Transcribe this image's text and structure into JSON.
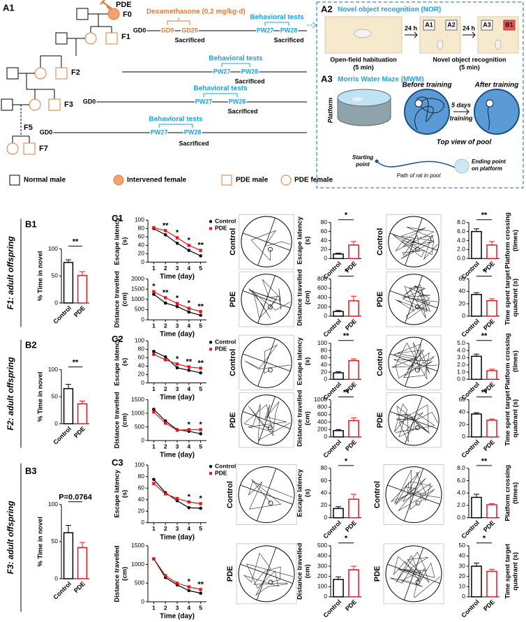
{
  "a1": {
    "label": "A1",
    "pde": "PDE",
    "f0": "F0",
    "f1": "F1",
    "f2": "F2",
    "f3": "F3",
    "f5": "F5",
    "f7": "F7",
    "dex": "Dexamethasone (0.2 mg/kg·d)",
    "t1": {
      "tests": "Behavioral tests",
      "gd0": "GD0",
      "gd9": "GD9",
      "gd20": "GD20",
      "sac_gd": "Sacrificed",
      "pw27": "PW27",
      "pw28": "PW28",
      "sac": "Sacrificed"
    },
    "t2": {
      "tests": "Behavioral tests",
      "pw27": "PW27",
      "pw28": "PW28",
      "sac": "Sacrificed"
    },
    "t3": {
      "tests": "Behavioral tests",
      "gd0": "GD0",
      "pw27": "PW27",
      "pw28": "PW28",
      "sac": "Sacrificed"
    },
    "t7": {
      "tests": "Behavioral tests",
      "gd0": "GD0",
      "pw27": "PW27",
      "pw28": "PW28",
      "sac": "Sacrificed"
    }
  },
  "legend": [
    "Normal male",
    "Intervened female",
    "PDE male",
    "PDE female"
  ],
  "a2": {
    "label": "A2",
    "title": "Novel object recognition (NOR)",
    "step1": [
      "Open-field habituation",
      "(5 min)"
    ],
    "arrow": [
      "24 h",
      "24 h"
    ],
    "objects": [
      "A1",
      "A2",
      "A3",
      "B1"
    ],
    "step2": [
      "Novel object recognition",
      "(5 min)"
    ]
  },
  "a3": {
    "label": "A3",
    "title": "Morris Water Maze (MWM)",
    "platform": "Platform",
    "before": "Before training",
    "after": "After training",
    "arrow": [
      "5 days",
      "training"
    ],
    "top_view": "Top view of pool",
    "start": [
      "Starting",
      "point"
    ],
    "path": "Path of rat in pool",
    "end": [
      "Ending point",
      "on platform"
    ]
  },
  "rows": [
    {
      "label": "F1: adult offspring",
      "track_labels": [
        "Control",
        "PDE",
        "Control",
        "PDE"
      ]
    },
    {
      "label": "F2: adult offspring",
      "track_labels": [
        "Control",
        "PDE",
        "Control",
        "PDE"
      ]
    },
    {
      "label": "F3: adult offspring",
      "track_labels": [
        "Control",
        "PDE",
        "Control",
        "PDE"
      ]
    }
  ],
  "chart_data": [
    {
      "type": "bar",
      "panel_label": "B1",
      "ylabel": [
        "% Time in novel"
      ],
      "categories": [
        "Control",
        "PDE"
      ],
      "values": [
        75,
        51
      ],
      "errors": [
        5,
        7
      ],
      "colors": [
        "#000000",
        "#e8141c"
      ],
      "ylim": [
        0,
        100
      ],
      "yticks": [
        0,
        50,
        100
      ],
      "annotation": "**"
    },
    {
      "type": "line",
      "panel_label": "C1",
      "ylabel": [
        "Escape latency",
        "(s)"
      ],
      "xlabel": "Time (day)",
      "x": [
        1,
        2,
        3,
        4,
        5
      ],
      "xlim": [
        0.5,
        5.5
      ],
      "xticks": [
        1,
        2,
        3,
        4,
        5
      ],
      "ylim": [
        0,
        100
      ],
      "yticks": [
        0,
        20,
        40,
        60,
        80,
        100
      ],
      "legend": true,
      "series": [
        {
          "name": "Control",
          "color": "#000000",
          "marker": "circle",
          "values": [
            80,
            65,
            45,
            28,
            15
          ]
        },
        {
          "name": "PDE",
          "color": "#e8141c",
          "marker": "square",
          "values": [
            82,
            75,
            58,
            40,
            28
          ]
        }
      ],
      "annotations": [
        null,
        "**",
        "*",
        "*",
        "**"
      ]
    },
    {
      "type": "line",
      "ylabel": [
        "Distance travelled",
        "(cm)"
      ],
      "xlabel": "Time (day)",
      "x": [
        1,
        2,
        3,
        4,
        5
      ],
      "xlim": [
        0.5,
        5.5
      ],
      "xticks": [
        1,
        2,
        3,
        4,
        5
      ],
      "ylim": [
        0,
        2000
      ],
      "yticks": [
        0,
        500,
        1000,
        1500,
        2000
      ],
      "legend": false,
      "series": [
        {
          "color": "#000000",
          "marker": "circle",
          "values": [
            1250,
            820,
            650,
            380,
            220
          ]
        },
        {
          "color": "#e8141c",
          "marker": "square",
          "values": [
            1380,
            1080,
            800,
            560,
            400
          ]
        }
      ],
      "annotations": [
        "*",
        "**",
        "*",
        "*",
        "**"
      ]
    },
    {
      "type": "bar",
      "ylabel": [
        "Escape latency",
        "(s)"
      ],
      "categories": [
        "Control",
        "PDE"
      ],
      "values": [
        10,
        30
      ],
      "errors": [
        2,
        8
      ],
      "colors": [
        "#000000",
        "#e8141c"
      ],
      "ylim": [
        0,
        80
      ],
      "yticks": [
        0,
        20,
        40,
        60,
        80
      ],
      "annotation": "*"
    },
    {
      "type": "bar",
      "ylabel": [
        "Distance travelled",
        "(cm)"
      ],
      "categories": [
        "Control",
        "PDE"
      ],
      "values": [
        100,
        330
      ],
      "errors": [
        25,
        100
      ],
      "colors": [
        "#000000",
        "#e8141c"
      ],
      "ylim": [
        0,
        800
      ],
      "yticks": [
        0,
        200,
        400,
        600,
        800
      ],
      "annotation": "*"
    },
    {
      "type": "bar",
      "ylabel": [
        "Platform crossing",
        "(times)"
      ],
      "categories": [
        "Control",
        "PDE"
      ],
      "values": [
        6,
        3
      ],
      "errors": [
        0.6,
        0.8
      ],
      "colors": [
        "#000000",
        "#e8141c"
      ],
      "ylim": [
        0,
        8
      ],
      "yticks": [
        {
          "value": 0,
          "label": "0.0"
        },
        {
          "value": 2,
          "label": "2.0"
        },
        {
          "value": 4,
          "label": "4.0"
        },
        {
          "value": 6,
          "label": "6.0"
        },
        {
          "value": 8,
          "label": "8.0"
        }
      ],
      "annotation": "**"
    },
    {
      "type": "bar",
      "ylabel": [
        "Time spent target",
        "quadrant (s)"
      ],
      "categories": [
        "Control",
        "PDE"
      ],
      "values": [
        35,
        25
      ],
      "errors": [
        3,
        3
      ],
      "colors": [
        "#000000",
        "#e8141c"
      ],
      "ylim": [
        0,
        60
      ],
      "yticks": [
        0,
        20,
        40,
        60
      ],
      "annotation": "*"
    },
    {
      "type": "bar",
      "panel_label": "B2",
      "ylabel": [
        "% Time in novel"
      ],
      "categories": [
        "Control",
        "PDE"
      ],
      "values": [
        65,
        37
      ],
      "errors": [
        8,
        5
      ],
      "colors": [
        "#000000",
        "#e8141c"
      ],
      "ylim": [
        0,
        100
      ],
      "yticks": [
        0,
        50,
        100
      ],
      "annotation": "**"
    },
    {
      "type": "line",
      "panel_label": "C2",
      "ylabel": [
        "Escape latency",
        "(s)"
      ],
      "xlabel": "Time (day)",
      "x": [
        1,
        2,
        3,
        4,
        5
      ],
      "xlim": [
        0.5,
        5.5
      ],
      "xticks": [
        1,
        2,
        3,
        4,
        5
      ],
      "ylim": [
        0,
        100
      ],
      "yticks": [
        0,
        20,
        40,
        60,
        80,
        100
      ],
      "legend": true,
      "series": [
        {
          "name": "Control",
          "color": "#000000",
          "marker": "circle",
          "values": [
            75,
            62,
            36,
            30,
            24
          ]
        },
        {
          "name": "PDE",
          "color": "#e8141c",
          "marker": "square",
          "values": [
            68,
            55,
            45,
            38,
            35
          ]
        }
      ],
      "annotations": [
        null,
        null,
        "*",
        "**",
        "**"
      ]
    },
    {
      "type": "line",
      "ylabel": [
        "Distance travelled",
        "(cm)"
      ],
      "xlabel": "Time (day)",
      "x": [
        1,
        2,
        3,
        4,
        5
      ],
      "xlim": [
        0.5,
        5.5
      ],
      "xticks": [
        1,
        2,
        3,
        4,
        5
      ],
      "ylim": [
        0,
        1500
      ],
      "yticks": [
        0,
        500,
        1000,
        1500
      ],
      "legend": false,
      "series": [
        {
          "color": "#000000",
          "marker": "circle",
          "values": [
            1150,
            720,
            400,
            340,
            250
          ]
        },
        {
          "color": "#e8141c",
          "marker": "square",
          "values": [
            1050,
            640,
            380,
            400,
            400
          ]
        }
      ],
      "annotations": [
        null,
        null,
        null,
        "*",
        "*"
      ]
    },
    {
      "type": "bar",
      "ylabel": [
        "Escape latency",
        "(s)"
      ],
      "categories": [
        "Control",
        "PDE"
      ],
      "values": [
        18,
        52
      ],
      "errors": [
        3,
        5
      ],
      "colors": [
        "#000000",
        "#e8141c"
      ],
      "ylim": [
        0,
        100
      ],
      "yticks": [
        0,
        20,
        40,
        60,
        80,
        100
      ],
      "annotation": "**"
    },
    {
      "type": "bar",
      "ylabel": [
        "Distance travelled",
        "(cm)"
      ],
      "categories": [
        "Control",
        "PDE"
      ],
      "values": [
        170,
        440
      ],
      "errors": [
        30,
        70
      ],
      "colors": [
        "#000000",
        "#e8141c"
      ],
      "ylim": [
        0,
        1000
      ],
      "yticks": [
        0,
        200,
        400,
        600,
        800,
        1000
      ],
      "annotation": "**"
    },
    {
      "type": "bar",
      "ylabel": [
        "Platform crossing",
        "(times)"
      ],
      "categories": [
        "Control",
        "PDE"
      ],
      "values": [
        3.2,
        1.2
      ],
      "errors": [
        0.3,
        0.2
      ],
      "colors": [
        "#000000",
        "#e8141c"
      ],
      "ylim": [
        0,
        5
      ],
      "yticks": [
        {
          "value": 0,
          "label": "0.0"
        },
        {
          "value": 1,
          "label": "1.0"
        },
        {
          "value": 2,
          "label": "2.0"
        },
        {
          "value": 3,
          "label": "3.0"
        },
        {
          "value": 4,
          "label": "4.0"
        },
        {
          "value": 5,
          "label": "5.0"
        }
      ],
      "annotation": "**"
    },
    {
      "type": "bar",
      "ylabel": [
        "Time spent target",
        "quadrant (s)"
      ],
      "categories": [
        "Control",
        "PDE"
      ],
      "values": [
        37,
        27
      ],
      "errors": [
        2,
        2
      ],
      "colors": [
        "#000000",
        "#e8141c"
      ],
      "ylim": [
        0,
        60
      ],
      "yticks": [
        0,
        20,
        40,
        60
      ],
      "annotation": "**"
    },
    {
      "type": "bar",
      "panel_label": "B3",
      "ylabel": [
        "% Time in novel"
      ],
      "categories": [
        "Control",
        "PDE"
      ],
      "values": [
        62,
        42
      ],
      "errors": [
        10,
        7
      ],
      "colors": [
        "#000000",
        "#e8141c"
      ],
      "ylim": [
        0,
        100
      ],
      "yticks": [
        0,
        50,
        100
      ],
      "annotation": "P=0.0764"
    },
    {
      "type": "line",
      "panel_label": "C3",
      "ylabel": [
        "Escape latency",
        "(s)"
      ],
      "xlabel": "Time (day)",
      "x": [
        1,
        2,
        3,
        4,
        5
      ],
      "xlim": [
        0.5,
        5.5
      ],
      "xticks": [
        1,
        2,
        3,
        4,
        5
      ],
      "ylim": [
        0,
        100
      ],
      "yticks": [
        0,
        20,
        40,
        60,
        80,
        100
      ],
      "legend": true,
      "series": [
        {
          "name": "Control",
          "color": "#000000",
          "marker": "circle",
          "values": [
            75,
            52,
            38,
            26,
            25
          ]
        },
        {
          "name": "PDE",
          "color": "#e8141c",
          "marker": "square",
          "values": [
            68,
            50,
            42,
            36,
            33
          ]
        }
      ],
      "annotations": [
        null,
        null,
        null,
        "*",
        "*"
      ]
    },
    {
      "type": "line",
      "ylabel": [
        "Distance travelled",
        "(cm)"
      ],
      "xlabel": "Time (day)",
      "x": [
        1,
        2,
        3,
        4,
        5
      ],
      "xlim": [
        0.5,
        5.5
      ],
      "xticks": [
        1,
        2,
        3,
        4,
        5
      ],
      "ylim": [
        0,
        1500
      ],
      "yticks": [
        0,
        500,
        1000,
        1500
      ],
      "legend": false,
      "series": [
        {
          "color": "#000000",
          "marker": "circle",
          "values": [
            1150,
            650,
            450,
            300,
            230
          ]
        },
        {
          "color": "#e8141c",
          "marker": "square",
          "values": [
            1150,
            700,
            500,
            400,
            330
          ]
        }
      ],
      "annotations": [
        null,
        null,
        null,
        "*",
        "**"
      ]
    },
    {
      "type": "bar",
      "ylabel": [
        "Escape latency",
        "(s)"
      ],
      "categories": [
        "Control",
        "PDE"
      ],
      "values": [
        15,
        30
      ],
      "errors": [
        3,
        8
      ],
      "colors": [
        "#000000",
        "#e8141c"
      ],
      "ylim": [
        0,
        80
      ],
      "yticks": [
        0,
        20,
        40,
        60,
        80
      ],
      "annotation": "*"
    },
    {
      "type": "bar",
      "ylabel": [
        "Distance travelled",
        "(cm)"
      ],
      "categories": [
        "Control",
        "PDE"
      ],
      "values": [
        170,
        265
      ],
      "errors": [
        25,
        35
      ],
      "colors": [
        "#000000",
        "#e8141c"
      ],
      "ylim": [
        0,
        500
      ],
      "yticks": [
        0,
        100,
        200,
        300,
        400,
        500
      ],
      "annotation": "*"
    },
    {
      "type": "bar",
      "ylabel": [
        "Platform crossing",
        "(times)"
      ],
      "categories": [
        "Control",
        "PDE"
      ],
      "values": [
        3.3,
        2.1
      ],
      "errors": [
        0.5,
        0.2
      ],
      "colors": [
        "#000000",
        "#e8141c"
      ],
      "ylim": [
        0,
        8
      ],
      "yticks": [
        {
          "value": 0,
          "label": "0.0"
        },
        {
          "value": 2,
          "label": "2.0"
        },
        {
          "value": 4,
          "label": "4.0"
        },
        {
          "value": 6,
          "label": "6.0"
        },
        {
          "value": 8,
          "label": "8.0"
        }
      ],
      "annotation": "**"
    },
    {
      "type": "bar",
      "ylabel": [
        "Time spent target",
        "quadrant (s)"
      ],
      "categories": [
        "Control",
        "PDE"
      ],
      "values": [
        30,
        25
      ],
      "errors": [
        3,
        2
      ],
      "colors": [
        "#000000",
        "#e8141c"
      ],
      "ylim": [
        0,
        50
      ],
      "yticks": [
        0,
        10,
        20,
        30,
        40,
        50
      ],
      "annotation": "*"
    }
  ]
}
